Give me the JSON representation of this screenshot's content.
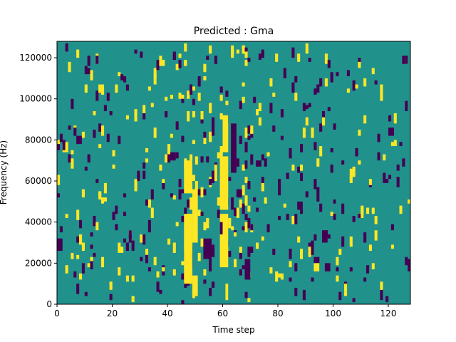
{
  "chart_data": {
    "type": "heatmap",
    "title": "Predicted : Gma",
    "xlabel": "Time step",
    "ylabel": "Frequency (Hz)",
    "xlim": [
      0,
      128
    ],
    "ylim": [
      0,
      128000
    ],
    "x_ticks": [
      0,
      20,
      40,
      60,
      80,
      100,
      120
    ],
    "x_tick_labels": [
      "0",
      "20",
      "40",
      "60",
      "80",
      "100",
      "120"
    ],
    "y_ticks": [
      0,
      20000,
      40000,
      60000,
      80000,
      100000,
      120000
    ],
    "y_tick_labels": [
      "0",
      "20000",
      "40000",
      "60000",
      "80000",
      "100000",
      "120000"
    ],
    "grid": false,
    "legend": "none",
    "colormap": "viridis",
    "colors": {
      "background": "#21918c",
      "low": "#440154",
      "high": "#fde725"
    },
    "rows": 128,
    "cols": 128,
    "cell_height_hz": 1000,
    "background_value": 0.5,
    "features": [
      {
        "value": 1,
        "t": [
          46,
          49
        ],
        "f": [
          54000,
          70000
        ]
      },
      {
        "value": 1,
        "t": [
          46,
          49
        ],
        "f": [
          10000,
          44000
        ]
      },
      {
        "value": 1,
        "t": [
          49,
          51
        ],
        "f": [
          30000,
          56000
        ]
      },
      {
        "value": 1,
        "t": [
          49,
          51
        ],
        "f": [
          4000,
          14000
        ]
      },
      {
        "value": 1,
        "t": [
          59,
          62
        ],
        "f": [
          18000,
          44000
        ]
      },
      {
        "value": 1,
        "t": [
          59,
          62
        ],
        "f": [
          46000,
          72000
        ]
      },
      {
        "value": 1,
        "t": [
          60,
          62
        ],
        "f": [
          74000,
          92000
        ]
      },
      {
        "value": 1,
        "t": [
          61,
          62
        ],
        "f": [
          2000,
          10000
        ]
      },
      {
        "value": 1,
        "t": [
          57,
          58
        ],
        "f": [
          60000,
          68000
        ]
      },
      {
        "value": 1,
        "t": [
          93,
          95
        ],
        "f": [
          16000,
          20000
        ]
      },
      {
        "value": 0,
        "t": [
          53,
          56
        ],
        "f": [
          22000,
          32000
        ]
      },
      {
        "value": 0,
        "t": [
          55,
          56
        ],
        "f": [
          16000,
          22000
        ]
      },
      {
        "value": 0,
        "t": [
          63,
          65
        ],
        "f": [
          64000,
          88000
        ]
      },
      {
        "value": 0,
        "t": [
          65,
          67
        ],
        "f": [
          52000,
          56000
        ]
      },
      {
        "value": 0,
        "t": [
          68,
          70
        ],
        "f": [
          12000,
          22000
        ]
      },
      {
        "value": 0,
        "t": [
          68,
          69
        ],
        "f": [
          66000,
          70000
        ]
      },
      {
        "value": 0,
        "t": [
          97,
          99
        ],
        "f": [
          16000,
          20000
        ]
      },
      {
        "value": 0,
        "t": [
          96,
          98
        ],
        "f": [
          30000,
          36000
        ]
      },
      {
        "value": 0,
        "t": [
          87,
          89
        ],
        "f": [
          46000,
          50000
        ]
      },
      {
        "value": 0,
        "t": [
          41,
          43
        ],
        "f": [
          70000,
          74000
        ]
      },
      {
        "value": 0,
        "t": [
          7,
          9
        ],
        "f": [
          78000,
          82000
        ]
      },
      {
        "value": 0,
        "t": [
          0,
          2
        ],
        "f": [
          26000,
          32000
        ]
      },
      {
        "value": 0,
        "t": [
          21,
          22
        ],
        "f": [
          44000,
          48000
        ]
      },
      {
        "value": 0,
        "t": [
          63,
          64
        ],
        "f": [
          46000,
          52000
        ]
      },
      {
        "value": 0,
        "t": [
          59,
          60
        ],
        "f": [
          34000,
          40000
        ]
      },
      {
        "value": 0,
        "t": [
          32,
          33
        ],
        "f": [
          20000,
          24000
        ]
      }
    ]
  }
}
